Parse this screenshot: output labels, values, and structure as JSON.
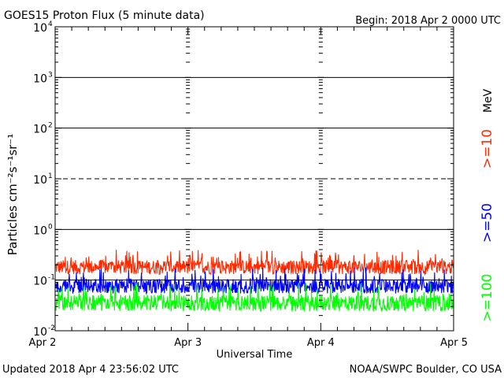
{
  "header": {
    "title": "GOES15 Proton Flux (5 minute data)",
    "begin": "Begin: 2018 Apr 2 0000 UTC"
  },
  "footer": {
    "updated": "Updated 2018 Apr  4 23:56:02 UTC",
    "credit": "NOAA/SWPC Boulder, CO USA"
  },
  "chart_data": {
    "type": "line",
    "xlabel": "Universal Time",
    "ylabel": "Particles cm⁻²s⁻¹sr⁻¹",
    "yscale": "log",
    "ylim": [
      0.01,
      10000
    ],
    "xlim": [
      "2018-04-02",
      "2018-04-05"
    ],
    "x_ticks": [
      "Apr 2",
      "Apr 3",
      "Apr 4",
      "Apr 5"
    ],
    "y_ticks": [
      {
        "value": 0.01,
        "base": "10",
        "exp": "-2"
      },
      {
        "value": 0.1,
        "base": "10",
        "exp": "-1"
      },
      {
        "value": 1,
        "base": "10",
        "exp": "0"
      },
      {
        "value": 10,
        "base": "10",
        "exp": "1"
      },
      {
        "value": 100,
        "base": "10",
        "exp": "2"
      },
      {
        "value": 1000,
        "base": "10",
        "exp": "3"
      },
      {
        "value": 10000,
        "base": "10",
        "exp": "4"
      }
    ],
    "unit_label": "MeV",
    "threshold_lines": [
      {
        "value": 1000,
        "style": "solid"
      },
      {
        "value": 100,
        "style": "solid"
      },
      {
        "value": 10,
        "style": "dashed"
      },
      {
        "value": 1,
        "style": "solid"
      },
      {
        "value": 0.1,
        "style": "solid"
      }
    ],
    "series": [
      {
        "name": ">=10",
        "color": "#ff2a00",
        "typical": 0.18,
        "min": 0.12,
        "max": 0.4
      },
      {
        "name": ">=50",
        "color": "#0000ff",
        "typical": 0.075,
        "min": 0.05,
        "max": 0.18
      },
      {
        "name": ">=100",
        "color": "#00ff00",
        "typical": 0.035,
        "min": 0.022,
        "max": 0.09
      }
    ]
  }
}
